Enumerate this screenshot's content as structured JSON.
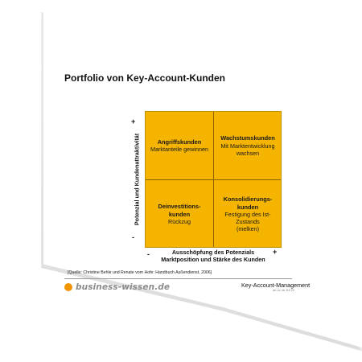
{
  "title": "Portfolio von Key-Account-Kunden",
  "axes": {
    "y_label": "Potenzial und Kundenattraktivität",
    "y_plus": "+",
    "y_minus": "-",
    "x_label_line1": "Ausschöpfung des Potenzials",
    "x_label_line2": "Marktposition und Stärke des Kunden",
    "x_minus": "-",
    "x_plus": "+"
  },
  "quadrants": {
    "top_left": {
      "name": "Angriffskunden",
      "desc": "Marktanteile gewinnen"
    },
    "top_right": {
      "name": "Wachstumskunden",
      "desc_line1": "Mit Marktentwicklung",
      "desc_line2": "wachsen"
    },
    "bottom_left": {
      "name_line1": "Deinvestitions-",
      "name_line2": "kunden",
      "desc": "Rückzug"
    },
    "bottom_right": {
      "name_line1": "Konsolidierungs-",
      "name_line2": "kunden",
      "desc_line1": "Festigung des Ist-",
      "desc_line2": "Zustands",
      "desc_line3": "(melken)"
    }
  },
  "source": "[Quelle: Christine Behle und Renate vom Hofe: Handbuch Außendienst, 2006]",
  "footer": {
    "brand": "business-wissen.de",
    "doc_title": "Key-Account-Management",
    "doc_id": "art.-nr. bk 110 22"
  },
  "colors": {
    "quadrant_fill": "#f5b400",
    "brand_accent": "#f29400",
    "brand_text": "#8c8c8c"
  }
}
